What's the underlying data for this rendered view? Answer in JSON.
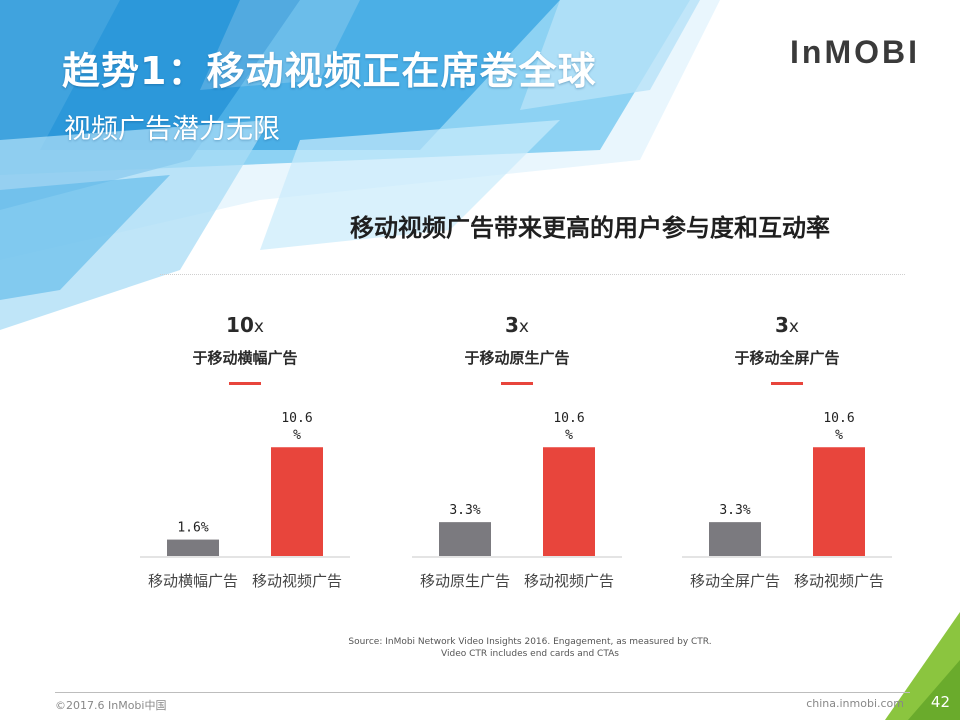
{
  "header": {
    "title": "趋势1：移动视频正在席卷全球",
    "subtitle": "视频广告潜力无限",
    "logo": "InMOBI"
  },
  "headline": "移动视频广告带来更高的用户参与度和互动率",
  "colors": {
    "accent_red": "#e8453c",
    "bar_gray": "#7b7a7f",
    "bar_red": "#e8453c",
    "blue_light": "#6ec0ec",
    "blue_mid": "#2b95d8",
    "green": "#8bc53f"
  },
  "chart_data": [
    {
      "type": "bar",
      "multiplier_num": "10",
      "multiplier_x": "x",
      "comparison": "于移动横幅广告",
      "categories": [
        "移动横幅广告",
        "移动视频广告"
      ],
      "values": [
        1.6,
        10.6
      ],
      "value_labels": [
        [
          "1.6%"
        ],
        [
          "10.6",
          "%"
        ]
      ],
      "unit": "%",
      "ylim": [
        0,
        11.5
      ]
    },
    {
      "type": "bar",
      "multiplier_num": "3",
      "multiplier_x": "x",
      "comparison": "于移动原生广告",
      "categories": [
        "移动原生广告",
        "移动视频广告"
      ],
      "values": [
        3.3,
        10.6
      ],
      "value_labels": [
        [
          "3.3%"
        ],
        [
          "10.6",
          "%"
        ]
      ],
      "unit": "%",
      "ylim": [
        0,
        11.5
      ]
    },
    {
      "type": "bar",
      "multiplier_num": "3",
      "multiplier_x": "x",
      "comparison": "于移动全屏广告",
      "categories": [
        "移动全屏广告",
        "移动视频广告"
      ],
      "values": [
        3.3,
        10.6
      ],
      "value_labels": [
        [
          "3.3%"
        ],
        [
          "10.6",
          "%"
        ]
      ],
      "unit": "%",
      "ylim": [
        0,
        11.5
      ]
    }
  ],
  "source": {
    "line1": "Source: InMobi Network Video Insights 2016. Engagement, as measured by CTR.",
    "line2": "Video CTR includes end cards and CTAs"
  },
  "footer": {
    "copyright": "©2017.6 InMobi中国",
    "site": "china.inmobi.com",
    "page_number": "42"
  }
}
